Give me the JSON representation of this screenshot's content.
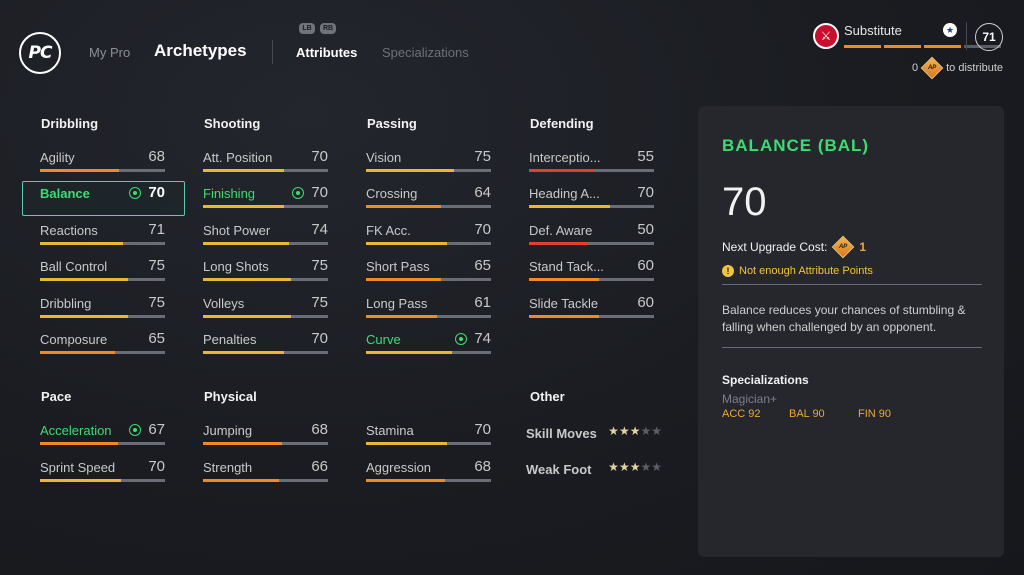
{
  "header": {
    "logo": "PC",
    "nav": {
      "my_pro": "My Pro",
      "archetypes": "Archetypes",
      "attributes": "Attributes",
      "specializations": "Specializations",
      "lb": "LB",
      "rb": "RB"
    },
    "role": "Substitute",
    "ovr": "71",
    "ap_count": "0",
    "ap_icon": "AP",
    "to_distribute": "to distribute",
    "role_bars": [
      true,
      true,
      true,
      false
    ]
  },
  "categories": {
    "dribbling": "Dribbling",
    "shooting": "Shooting",
    "passing": "Passing",
    "defending": "Defending",
    "pace": "Pace",
    "physical": "Physical",
    "other": "Other"
  },
  "stats": {
    "agility": {
      "name": "Agility",
      "value": "68"
    },
    "balance": {
      "name": "Balance",
      "value": "70"
    },
    "reactions": {
      "name": "Reactions",
      "value": "71"
    },
    "ball_control": {
      "name": "Ball Control",
      "value": "75"
    },
    "dribbling": {
      "name": "Dribbling",
      "value": "75"
    },
    "composure": {
      "name": "Composure",
      "value": "65"
    },
    "att_position": {
      "name": "Att. Position",
      "value": "70"
    },
    "finishing": {
      "name": "Finishing",
      "value": "70"
    },
    "shot_power": {
      "name": "Shot Power",
      "value": "74"
    },
    "long_shots": {
      "name": "Long Shots",
      "value": "75"
    },
    "volleys": {
      "name": "Volleys",
      "value": "75"
    },
    "penalties": {
      "name": "Penalties",
      "value": "70"
    },
    "vision": {
      "name": "Vision",
      "value": "75"
    },
    "crossing": {
      "name": "Crossing",
      "value": "64"
    },
    "fk_acc": {
      "name": "FK Acc.",
      "value": "70"
    },
    "short_pass": {
      "name": "Short Pass",
      "value": "65"
    },
    "long_pass": {
      "name": "Long Pass",
      "value": "61"
    },
    "curve": {
      "name": "Curve",
      "value": "74"
    },
    "interceptions": {
      "name": "Interceptio...",
      "value": "55"
    },
    "heading": {
      "name": "Heading A...",
      "value": "70"
    },
    "def_aware": {
      "name": "Def. Aware",
      "value": "50"
    },
    "stand_tackle": {
      "name": "Stand Tack...",
      "value": "60"
    },
    "slide_tackle": {
      "name": "Slide Tackle",
      "value": "60"
    },
    "acceleration": {
      "name": "Acceleration",
      "value": "67"
    },
    "sprint_speed": {
      "name": "Sprint Speed",
      "value": "70"
    },
    "jumping": {
      "name": "Jumping",
      "value": "68"
    },
    "strength": {
      "name": "Strength",
      "value": "66"
    },
    "stamina": {
      "name": "Stamina",
      "value": "70"
    },
    "aggression": {
      "name": "Aggression",
      "value": "68"
    }
  },
  "other": {
    "skill_moves": {
      "name": "Skill Moves",
      "stars": 3,
      "max": 5
    },
    "weak_foot": {
      "name": "Weak Foot",
      "stars": 3,
      "max": 5
    }
  },
  "colors": {
    "accent_green": "#3ddc73",
    "orange": "#f08a24",
    "yellow": "#e8b830",
    "red": "#e0412e"
  },
  "panel": {
    "title": "BALANCE (BAL)",
    "value": "70",
    "cost_label": "Next Upgrade Cost:",
    "cost": "1",
    "ap_icon": "AP",
    "warning": "Not enough Attribute Points",
    "warn_icon": "!",
    "description": "Balance reduces your chances of stumbling & falling when challenged by an opponent.",
    "spec_heading": "Specializations",
    "spec_name": "Magician+",
    "spec_values": [
      "ACC 92",
      "BAL 90",
      "FIN 90"
    ]
  }
}
